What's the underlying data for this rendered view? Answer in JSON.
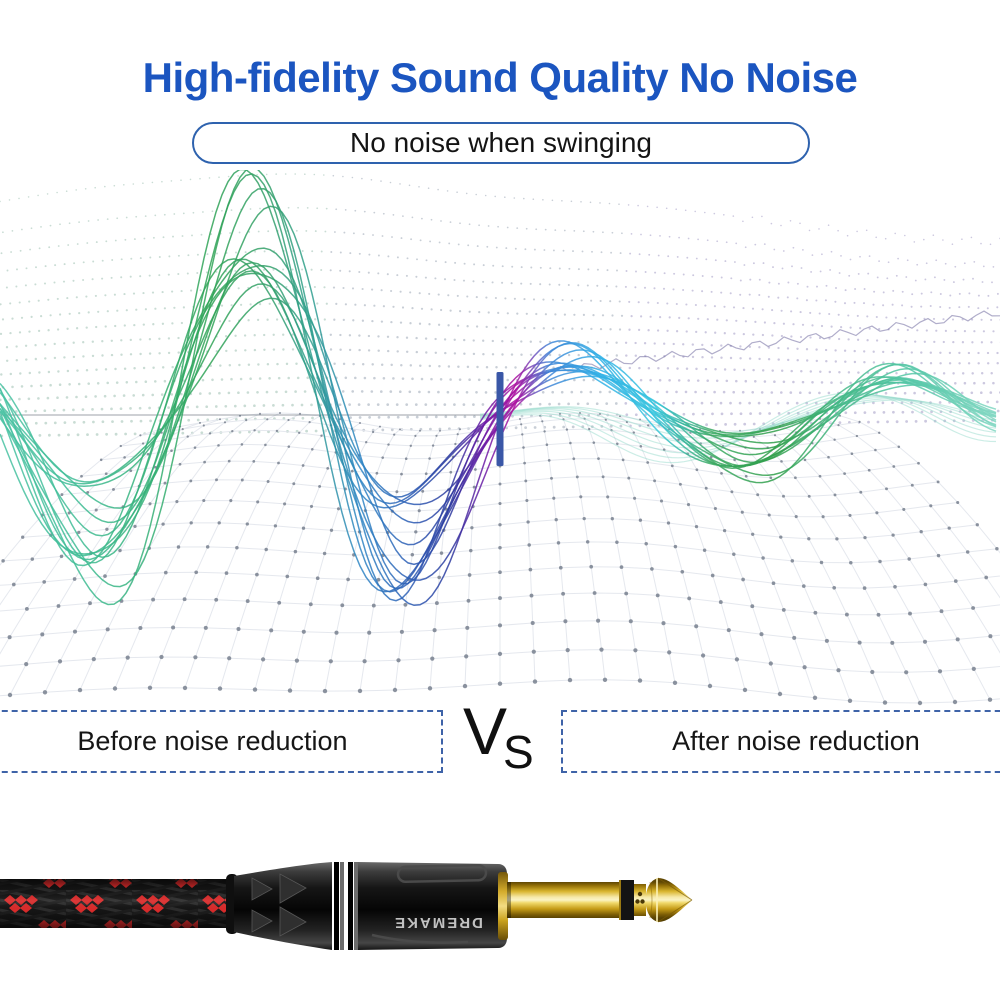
{
  "title": {
    "text": "High-fidelity Sound Quality No Noise",
    "color": "#1b55c0"
  },
  "tagline": {
    "text": "No noise when swinging",
    "border_color": "#2e62ae",
    "text_color": "#141414"
  },
  "comparison": {
    "before_label": "Before noise reduction",
    "after_label": "After noise reduction",
    "vs_v": "V",
    "vs_s": "S",
    "box_border_color": "#3e63a8",
    "label_color": "#161616"
  },
  "wave": {
    "divider_color": "#3a57a7",
    "centerline_color": "#3b4754",
    "gradient": [
      {
        "o": 0.0,
        "c": "#49c2a3"
      },
      {
        "o": 0.07,
        "c": "#3fbd97"
      },
      {
        "o": 0.14,
        "c": "#36b27c"
      },
      {
        "o": 0.21,
        "c": "#2fa355"
      },
      {
        "o": 0.27,
        "c": "#34a06b"
      },
      {
        "o": 0.31,
        "c": "#2f9f8d"
      },
      {
        "o": 0.36,
        "c": "#2f86c5"
      },
      {
        "o": 0.41,
        "c": "#2b5cb4"
      },
      {
        "o": 0.45,
        "c": "#2c3a9f"
      },
      {
        "o": 0.485,
        "c": "#6d1ba6"
      },
      {
        "o": 0.515,
        "c": "#ad10a0"
      },
      {
        "o": 0.55,
        "c": "#3f85d6"
      },
      {
        "o": 0.6,
        "c": "#2fb0e6"
      },
      {
        "o": 0.655,
        "c": "#38c6de"
      },
      {
        "o": 0.71,
        "c": "#3aa963"
      },
      {
        "o": 0.775,
        "c": "#2f9e49"
      },
      {
        "o": 0.84,
        "c": "#43b887"
      },
      {
        "o": 0.91,
        "c": "#55c7a7"
      },
      {
        "o": 1.0,
        "c": "#84d8c4"
      }
    ],
    "dots": {
      "left": "#9dbfb0",
      "mid": "#9aa6b5",
      "right": "#a29bc4",
      "floor_dot": "#6d7685",
      "floor_line": "#e2e6ec",
      "thread": "#6f6a9e",
      "secondary_wave": "#8fd8c8"
    }
  },
  "product": {
    "brand": "DREMAKE",
    "brand_text_color": "#c2c2c2",
    "cable_red": "#d92b2b"
  }
}
